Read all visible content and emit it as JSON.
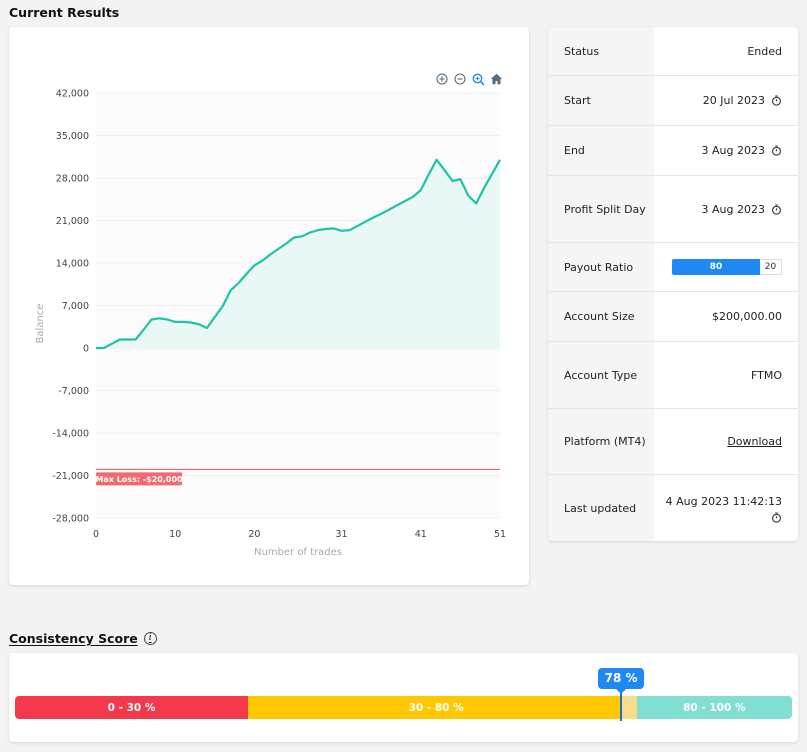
{
  "sections": {
    "current_results": "Current Results",
    "consistency_score": "Consistency Score",
    "info_glyph": "i"
  },
  "toolbar": {
    "icons": [
      "zoom-in-icon",
      "zoom-out-icon",
      "zoom-select-icon",
      "home-icon"
    ]
  },
  "chart_data": {
    "type": "area",
    "xlabel": "Number of trades",
    "ylabel": "Balance",
    "xlim": [
      0,
      51
    ],
    "ylim": [
      -28000,
      42000
    ],
    "x_ticks": [
      "0",
      "10",
      "20",
      "31",
      "41",
      "51"
    ],
    "x_tick_values": [
      0,
      10,
      20,
      31,
      41,
      51
    ],
    "y_ticks": [
      "42,000",
      "35,000",
      "28,000",
      "21,000",
      "14,000",
      "7,000",
      "0",
      "-7,000",
      "-14,000",
      "-21,000",
      "-28,000"
    ],
    "y_tick_values": [
      42000,
      35000,
      28000,
      21000,
      14000,
      7000,
      0,
      -7000,
      -14000,
      -21000,
      -28000
    ],
    "x": [
      0,
      1,
      2,
      3,
      4,
      5,
      6,
      7,
      8,
      9,
      10,
      11,
      12,
      13,
      14,
      15,
      16,
      17,
      18,
      19,
      20,
      21,
      22,
      23,
      24,
      25,
      26,
      27,
      28,
      29,
      30,
      31,
      32,
      33,
      34,
      35,
      36,
      37,
      38,
      39,
      40,
      41,
      42,
      43,
      44,
      45,
      46,
      47,
      48,
      49,
      50,
      51
    ],
    "values": [
      0,
      0,
      700,
      1400,
      1400,
      1400,
      3000,
      4700,
      4900,
      4700,
      4300,
      4300,
      4200,
      3900,
      3300,
      5100,
      6900,
      9500,
      10700,
      12200,
      13600,
      14400,
      15400,
      16300,
      17200,
      18200,
      18400,
      19000,
      19400,
      19600,
      19700,
      19300,
      19400,
      20100,
      20800,
      21500,
      22100,
      22800,
      23500,
      24200,
      24900,
      26000,
      28600,
      31000,
      29300,
      27500,
      27800,
      25100,
      23800,
      26400,
      28700,
      31000
    ],
    "line_color": "#1cc4a6",
    "fill_color": "#e9f8f4",
    "grid": true,
    "threshold": {
      "value": -20000,
      "label": "Max Loss: -$20,000",
      "color": "#f06a72"
    }
  },
  "status_panel": {
    "rows": [
      {
        "label": "Status",
        "value": "Ended",
        "clock": false
      },
      {
        "label": "Start",
        "value": "20 Jul 2023",
        "clock": true
      },
      {
        "label": "End",
        "value": "3 Aug 2023",
        "clock": true
      },
      {
        "label": "Profit Split Day",
        "value": "3 Aug 2023",
        "clock": true
      },
      {
        "label": "Payout Ratio",
        "bar": true,
        "left": "80",
        "right": "20",
        "fraction": 0.8
      },
      {
        "label": "Account Size",
        "value": "$200,000.00",
        "clock": false
      },
      {
        "label": "Account Type",
        "value": "FTMO",
        "clock": false
      },
      {
        "label": "Platform (MT4)",
        "value": "Download",
        "link": true
      },
      {
        "label": "Last updated",
        "value": "4 Aug 2023 11:42:13",
        "clock": true,
        "stack": true
      }
    ]
  },
  "consistency": {
    "score": 78,
    "score_label": "78 %",
    "segments": [
      {
        "label": "0 - 30 %",
        "from": 0,
        "to": 30,
        "color": "#f5394d"
      },
      {
        "label": "30 - 80 %",
        "from": 30,
        "to": 80,
        "color": "#ffc800"
      },
      {
        "label": "80 - 100 %",
        "from": 80,
        "to": 100,
        "color": "#80dfd2"
      }
    ],
    "pending_color": "#f7dd89"
  }
}
